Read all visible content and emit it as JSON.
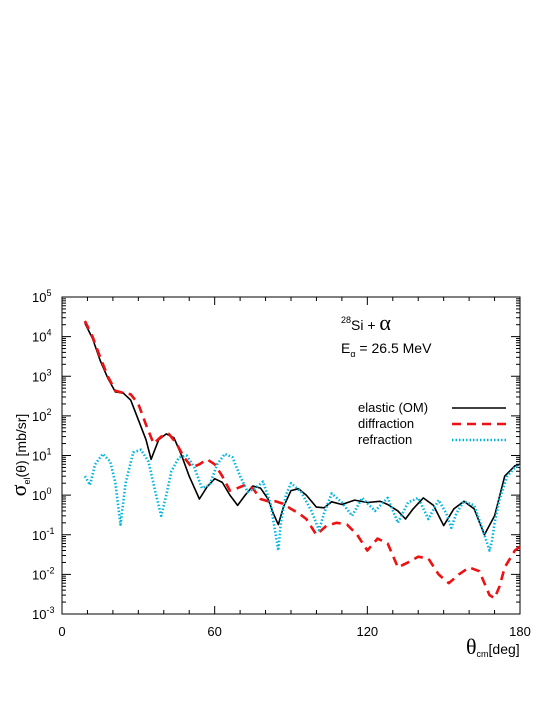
{
  "chart_data": {
    "type": "line",
    "title": "",
    "xlabel": {
      "symbol": "θ",
      "subscript": "cm",
      "unit": "[deg]"
    },
    "ylabel": {
      "symbol": "σ",
      "subscript": "el",
      "arg": "(θ) [mb/sr]"
    },
    "xlim": [
      0,
      180
    ],
    "ylim": [
      0.001,
      100000
    ],
    "yscale": "log",
    "grid": false,
    "legend_position": "right",
    "x_ticks": [
      0,
      60,
      120,
      180
    ],
    "x_tick_labels": [
      "0",
      "60",
      "120",
      "180"
    ],
    "y_ticks": [
      0.001,
      0.01,
      0.1,
      1,
      10,
      100,
      1000,
      10000,
      100000
    ],
    "y_tick_labels": [
      {
        "base": "10",
        "exp": "-3"
      },
      {
        "base": "10",
        "exp": "-2"
      },
      {
        "base": "10",
        "exp": "-1"
      },
      {
        "base": "10",
        "exp": "0"
      },
      {
        "base": "10",
        "exp": "1"
      },
      {
        "base": "10",
        "exp": "2"
      },
      {
        "base": "10",
        "exp": "3"
      },
      {
        "base": "10",
        "exp": "4"
      },
      {
        "base": "10",
        "exp": "5"
      }
    ],
    "annotations": {
      "reaction": {
        "mass": "28",
        "text": "Si + ",
        "symbol": "α"
      },
      "energy": {
        "label": "E",
        "sub": "α",
        "text": " = 26.5 MeV"
      }
    },
    "series": [
      {
        "name": "elastic (OM)",
        "color": "#000000",
        "style": "solid",
        "x": [
          9,
          12,
          15,
          18,
          21,
          24,
          27,
          30,
          33,
          35,
          38,
          41,
          44,
          47,
          50,
          54,
          57,
          60,
          63,
          66,
          69,
          72,
          75,
          78,
          81,
          83,
          85,
          87,
          90,
          93,
          96,
          100,
          103,
          106,
          110,
          115,
          120,
          125,
          128,
          132,
          135,
          138,
          142,
          146,
          150,
          154,
          158,
          162,
          166,
          170,
          174,
          178,
          180
        ],
        "y": [
          22000,
          9000,
          2500,
          900,
          400,
          380,
          250,
          80,
          25,
          8,
          25,
          35,
          28,
          10,
          3,
          0.8,
          1.6,
          2.6,
          2.1,
          1.0,
          0.55,
          1.0,
          1.7,
          1.5,
          0.8,
          0.35,
          0.18,
          0.5,
          1.3,
          1.45,
          1.0,
          0.5,
          0.48,
          0.68,
          0.58,
          0.75,
          0.65,
          0.7,
          0.58,
          0.4,
          0.25,
          0.45,
          0.85,
          0.55,
          0.17,
          0.45,
          0.7,
          0.45,
          0.1,
          0.3,
          3,
          5.5,
          6
        ]
      },
      {
        "name": "diffraction",
        "color": "#ee1111",
        "style": "dashed",
        "x": [
          9,
          12,
          15,
          18,
          21,
          24,
          27,
          30,
          33,
          36,
          39,
          42,
          45,
          48,
          51,
          54,
          57,
          60,
          63,
          66,
          69,
          72,
          75,
          78,
          81,
          84,
          87,
          90,
          93,
          96,
          100,
          104,
          108,
          112,
          116,
          120,
          124,
          128,
          132,
          136,
          140,
          144,
          148,
          152,
          156,
          160,
          164,
          168,
          170,
          172,
          174,
          178,
          180
        ],
        "y": [
          25000,
          10000,
          3000,
          1000,
          430,
          380,
          350,
          200,
          60,
          20,
          30,
          35,
          20,
          9,
          5,
          6,
          8,
          6,
          3,
          1.3,
          1.5,
          1.8,
          1.5,
          0.8,
          0.7,
          0.7,
          0.6,
          0.45,
          0.35,
          0.25,
          0.1,
          0.17,
          0.2,
          0.18,
          0.1,
          0.04,
          0.08,
          0.06,
          0.015,
          0.02,
          0.028,
          0.025,
          0.01,
          0.006,
          0.01,
          0.015,
          0.012,
          0.003,
          0.0025,
          0.005,
          0.015,
          0.04,
          0.05
        ]
      },
      {
        "name": "refraction",
        "color": "#00b5e0",
        "style": "dotted",
        "x": [
          9,
          11,
          13,
          16,
          19,
          21,
          23,
          25,
          28,
          31,
          34,
          37,
          39,
          41,
          43,
          46,
          49,
          52,
          55,
          58,
          61,
          64,
          67,
          70,
          73,
          76,
          79,
          82,
          84,
          85,
          86,
          88,
          90,
          94,
          98,
          101,
          103,
          106,
          110,
          114,
          118,
          123,
          128,
          132,
          136,
          140,
          144,
          148,
          151,
          153,
          155,
          158,
          162,
          166,
          168,
          169,
          170,
          172,
          175,
          178,
          180
        ],
        "y": [
          3,
          1.8,
          6,
          11,
          7,
          2,
          0.18,
          2,
          12,
          14,
          7,
          1,
          0.3,
          1,
          4,
          9,
          10,
          5,
          1.5,
          1.8,
          6,
          11,
          9,
          3,
          1.2,
          1.5,
          2.2,
          0.6,
          0.1,
          0.04,
          0.2,
          1,
          2,
          1.2,
          0.4,
          0.13,
          0.35,
          1.1,
          0.65,
          0.3,
          0.85,
          0.4,
          0.85,
          0.2,
          0.65,
          0.85,
          0.25,
          0.75,
          0.35,
          0.15,
          0.35,
          0.7,
          0.55,
          0.1,
          0.04,
          0.07,
          0.2,
          0.8,
          3,
          5,
          5.5
        ]
      }
    ]
  }
}
